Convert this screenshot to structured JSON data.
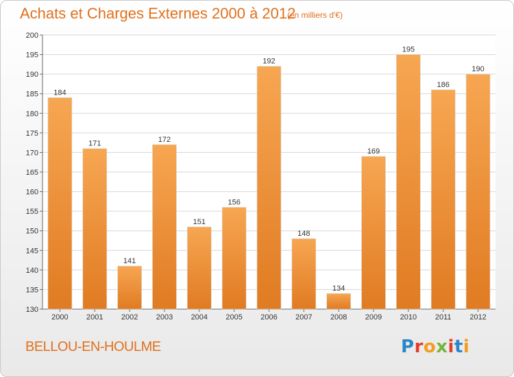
{
  "title": "Achats et Charges Externes 2000 à 2012",
  "unit_note": "(en milliers d'€)",
  "commune": "BELLOU-EN-HOULME",
  "logo": {
    "text": "Proxiti",
    "letters": [
      "P",
      "r",
      "o",
      "x",
      "i",
      "t",
      "i"
    ],
    "colors": [
      "#2a86c8",
      "#e23c2c",
      "#f29d1f",
      "#73b63e",
      "#e23c2c",
      "#2a86c8",
      "#f29d1f"
    ]
  },
  "colors": {
    "bar_top": "#f7a652",
    "bar_bottom": "#e07b22",
    "accent": "#e0701d"
  },
  "chart_data": {
    "type": "bar",
    "title": "Achats et Charges Externes 2000 à 2012",
    "categories": [
      "2000",
      "2001",
      "2002",
      "2003",
      "2004",
      "2005",
      "2006",
      "2007",
      "2008",
      "2009",
      "2010",
      "2011",
      "2012"
    ],
    "values": [
      184,
      171,
      141,
      172,
      151,
      156,
      192,
      148,
      134,
      169,
      195,
      186,
      190
    ],
    "ylim": [
      130,
      200
    ],
    "yticks": [
      130,
      135,
      140,
      145,
      150,
      155,
      160,
      165,
      170,
      175,
      180,
      185,
      190,
      195,
      200
    ],
    "grid": true,
    "xlabel": "",
    "ylabel": ""
  }
}
